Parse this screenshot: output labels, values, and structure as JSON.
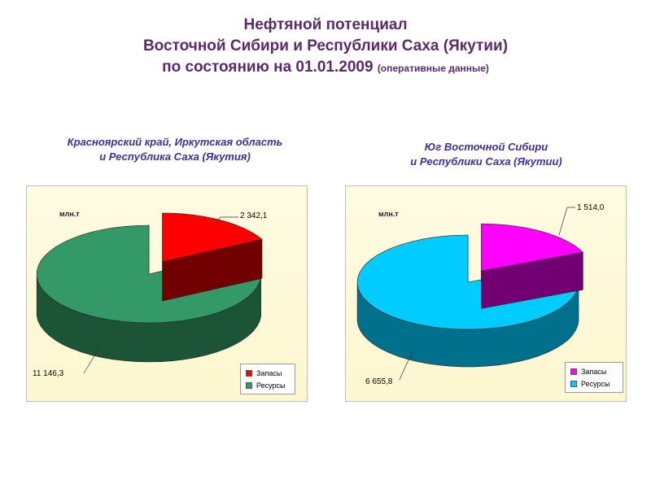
{
  "title": {
    "line1": "Нефтяной потенциал",
    "line2": "Восточной Сибири и Республики Саха (Якутии)",
    "line3": "по состоянию на 01.01.2009",
    "note": "(оперативные данные)"
  },
  "chart_data": [
    {
      "type": "pie",
      "subtitle_line1": "Красноярский край, Иркутская область",
      "subtitle_line2": "и Республика Саха (Якутия)",
      "unit": "млн.т",
      "categories": [
        "Запасы",
        "Ресурсы"
      ],
      "values": [
        2342.1,
        11146.3
      ],
      "value_labels": [
        "2 342,1",
        "11 146,3"
      ],
      "colors": [
        "#ff0000",
        "#339966"
      ],
      "legend_position": "bottom-right"
    },
    {
      "type": "pie",
      "subtitle_line1": "Юг Восточной Сибири",
      "subtitle_line2": "и Республики Саха (Якутии)",
      "unit": "млн.т",
      "categories": [
        "Запасы",
        "Ресурсы"
      ],
      "values": [
        1514.0,
        6655.8
      ],
      "value_labels": [
        "1 514,0",
        "6 655,8"
      ],
      "colors": [
        "#ff00ff",
        "#00ccff"
      ],
      "legend_position": "bottom-right"
    }
  ]
}
